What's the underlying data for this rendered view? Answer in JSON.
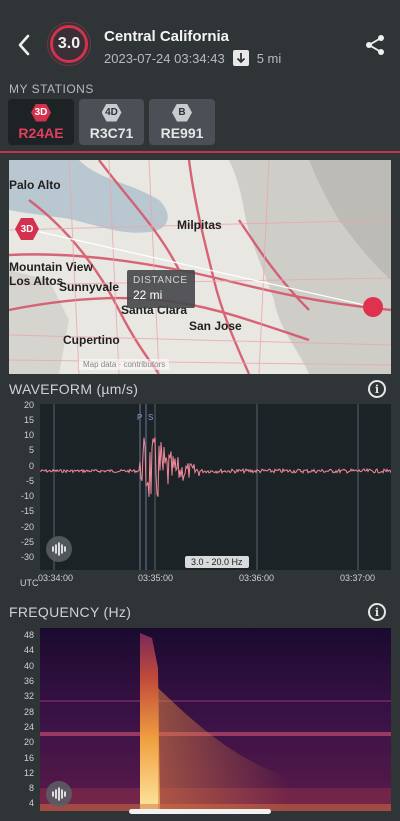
{
  "header": {
    "magnitude": "3.0",
    "title": "Central California",
    "timestamp": "2023-07-24 03:34:43",
    "distance": "5 mi",
    "accent_color": "#d4314f"
  },
  "stations": {
    "label": "MY STATIONS",
    "items": [
      {
        "badge": "3D",
        "name": "R24AE",
        "active": true
      },
      {
        "badge": "4D",
        "name": "R3C71",
        "active": false
      },
      {
        "badge": "B",
        "name": "RE991",
        "active": false
      }
    ]
  },
  "map": {
    "places": [
      "Palo Alto",
      "Milpitas",
      "Mountain View",
      "Los Altos",
      "Sunnyvale",
      "Santa Clara",
      "San Jose",
      "Cupertino"
    ],
    "station_badge": "3D",
    "distance_title": "DISTANCE",
    "distance_value": "22 mi",
    "attribution": "Map data · contributors"
  },
  "waveform": {
    "title": "WAVEFORM (µm/s)",
    "y_ticks": [
      "20",
      "15",
      "10",
      "5",
      "0",
      "-5",
      "-10",
      "-15",
      "-20",
      "-25",
      "-30"
    ],
    "x_ticks": [
      "03:34:00",
      "03:35:00",
      "03:36:00",
      "03:37:00"
    ],
    "x_unit": "UTC",
    "phase_labels": [
      "P",
      "S"
    ],
    "filter": "3.0 - 20.0 Hz"
  },
  "frequency": {
    "title": "FREQUENCY (Hz)",
    "y_ticks": [
      "48",
      "44",
      "40",
      "36",
      "32",
      "28",
      "24",
      "20",
      "16",
      "12",
      "8",
      "4"
    ]
  },
  "icons": {
    "back": "chevron-left-icon",
    "share": "share-icon",
    "info": "info-icon",
    "audio": "audio-waveform-icon",
    "distance": "arrow-down-icon"
  }
}
